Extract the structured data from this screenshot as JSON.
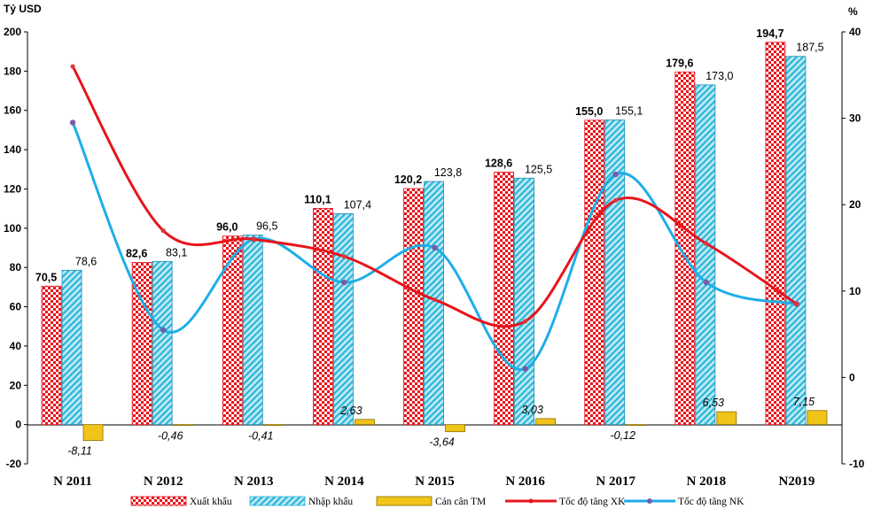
{
  "chart_data": {
    "type": "bar",
    "categories": [
      "N 2011",
      "N 2012",
      "N 2013",
      "N 2014",
      "N 2015",
      "N 2016",
      "N 2017",
      "N 2018",
      "N2019"
    ],
    "y_left_label": "Tỷ USD",
    "y_right_label": "%",
    "y_left_range": [
      -20,
      200
    ],
    "y_right_range": [
      -10,
      40
    ],
    "y_left_ticks": [
      "-20",
      "0",
      "20",
      "40",
      "60",
      "80",
      "100",
      "120",
      "140",
      "160",
      "180",
      "200"
    ],
    "y_right_ticks": [
      "-10",
      "0",
      "10",
      "20",
      "30",
      "40"
    ],
    "series": [
      {
        "name": "Xuất khẩu",
        "kind": "bar",
        "axis": "left",
        "color": "#e8141c",
        "values": [
          70.5,
          82.6,
          96.0,
          110.1,
          120.2,
          128.6,
          155.0,
          179.6,
          194.7
        ],
        "labels": [
          "70,5",
          "82,6",
          "96,0",
          "110,1",
          "120,2",
          "128,6",
          "155,0",
          "179,6",
          "194,7"
        ]
      },
      {
        "name": "Nhập khẩu",
        "kind": "bar",
        "axis": "left",
        "color": "#29b6d9",
        "values": [
          78.6,
          83.1,
          96.5,
          107.4,
          123.8,
          125.5,
          155.1,
          173.0,
          187.5
        ],
        "labels": [
          "78,6",
          "83,1",
          "96,5",
          "107,4",
          "123,8",
          "125,5",
          "155,1",
          "173,0",
          "187,5"
        ]
      },
      {
        "name": "Cán cân TM",
        "kind": "bar",
        "axis": "left",
        "color": "#f0c419",
        "values": [
          -8.11,
          -0.46,
          -0.41,
          2.63,
          -3.64,
          3.03,
          -0.12,
          6.53,
          7.15
        ],
        "labels": [
          "-8,11",
          "-0,46",
          "-0,41",
          "2,63",
          "-3,64",
          "3,03",
          "-0,12",
          "6,53",
          "7,15"
        ]
      },
      {
        "name": "Tốc độ tăng XK",
        "kind": "line",
        "axis": "right",
        "color": "#e8141c",
        "values": [
          36.0,
          17.0,
          16.0,
          14.0,
          9.0,
          6.5,
          20.5,
          15.5,
          8.5
        ]
      },
      {
        "name": "Tốc độ tăng NK",
        "kind": "line",
        "axis": "right",
        "color": "#1eaee8",
        "values": [
          29.5,
          5.5,
          16.0,
          11.0,
          15.0,
          1.0,
          23.5,
          11.0,
          8.5
        ]
      }
    ]
  }
}
